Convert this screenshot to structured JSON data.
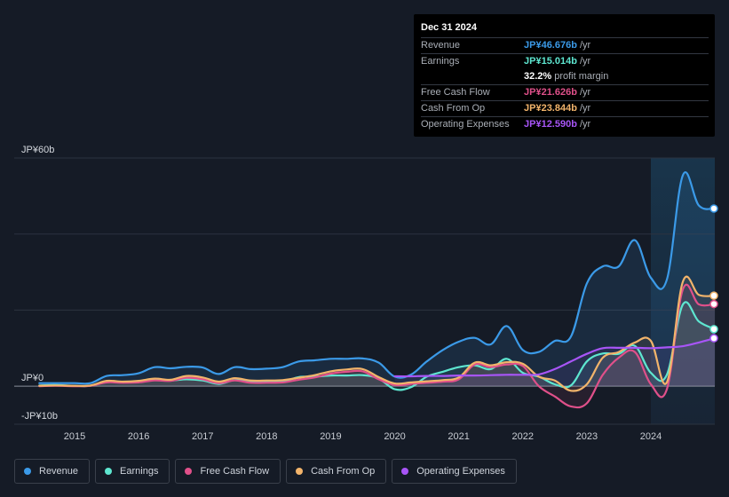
{
  "tooltip": {
    "date": "Dec 31 2024",
    "rows": [
      {
        "label": "Revenue",
        "value": "JP¥46.676b",
        "unit": "/yr",
        "color": "#3b9ae8"
      },
      {
        "label": "Earnings",
        "value": "JP¥15.014b",
        "unit": "/yr",
        "color": "#5ee6d0"
      },
      {
        "label": "",
        "value": "32.2%",
        "unit": "profit margin",
        "color": "#ffffff"
      },
      {
        "label": "Free Cash Flow",
        "value": "JP¥21.626b",
        "unit": "/yr",
        "color": "#e0508a"
      },
      {
        "label": "Cash From Op",
        "value": "JP¥23.844b",
        "unit": "/yr",
        "color": "#f2b46b"
      },
      {
        "label": "Operating Expenses",
        "value": "JP¥12.590b",
        "unit": "/yr",
        "color": "#a855f7"
      }
    ]
  },
  "legend": [
    {
      "label": "Revenue",
      "color": "#3b9ae8"
    },
    {
      "label": "Earnings",
      "color": "#5ee6d0"
    },
    {
      "label": "Free Cash Flow",
      "color": "#e0508a"
    },
    {
      "label": "Cash From Op",
      "color": "#f2b46b"
    },
    {
      "label": "Operating Expenses",
      "color": "#a855f7"
    }
  ],
  "chart_data": {
    "type": "line",
    "title": "",
    "unit": "JP¥ billions",
    "xlim": [
      2014.3,
      2025.0
    ],
    "ylim": [
      -10,
      60
    ],
    "y_tick_labels": [
      {
        "value": 60,
        "label": "JP¥60b"
      },
      {
        "value": 0,
        "label": "JP¥0"
      },
      {
        "value": -10,
        "label": "-JP¥10b"
      }
    ],
    "x_ticks": [
      "2015",
      "2016",
      "2017",
      "2018",
      "2019",
      "2020",
      "2021",
      "2022",
      "2023",
      "2024"
    ],
    "x_tick_values": [
      2015,
      2016,
      2017,
      2018,
      2019,
      2020,
      2021,
      2022,
      2023,
      2024
    ],
    "highlight_start": 2024.0,
    "series": [
      {
        "name": "Revenue",
        "color": "#3b9ae8",
        "points": [
          [
            2014.45,
            0.8
          ],
          [
            2014.7,
            0.8
          ],
          [
            2015.0,
            0.8
          ],
          [
            2015.25,
            0.8
          ],
          [
            2015.5,
            2.7
          ],
          [
            2015.75,
            2.9
          ],
          [
            2016.0,
            3.4
          ],
          [
            2016.25,
            5.0
          ],
          [
            2016.5,
            4.7
          ],
          [
            2016.75,
            5.1
          ],
          [
            2017.0,
            4.9
          ],
          [
            2017.25,
            3.2
          ],
          [
            2017.5,
            5.0
          ],
          [
            2017.75,
            4.5
          ],
          [
            2018.0,
            4.6
          ],
          [
            2018.25,
            5.0
          ],
          [
            2018.5,
            6.5
          ],
          [
            2018.75,
            6.8
          ],
          [
            2019.0,
            7.2
          ],
          [
            2019.25,
            7.2
          ],
          [
            2019.5,
            7.3
          ],
          [
            2019.75,
            6.2
          ],
          [
            2020.0,
            2.5
          ],
          [
            2020.25,
            3.0
          ],
          [
            2020.5,
            6.5
          ],
          [
            2020.75,
            9.5
          ],
          [
            2021.0,
            11.7
          ],
          [
            2021.25,
            12.7
          ],
          [
            2021.5,
            11.0
          ],
          [
            2021.75,
            15.8
          ],
          [
            2022.0,
            9.5
          ],
          [
            2022.25,
            9.0
          ],
          [
            2022.5,
            11.9
          ],
          [
            2022.75,
            13.0
          ],
          [
            2023.0,
            27.0
          ],
          [
            2023.25,
            31.5
          ],
          [
            2023.5,
            31.5
          ],
          [
            2023.75,
            38.4
          ],
          [
            2024.0,
            28.5
          ],
          [
            2024.25,
            28.0
          ],
          [
            2024.5,
            55.5
          ],
          [
            2024.75,
            47.5
          ],
          [
            2025.0,
            46.7
          ]
        ]
      },
      {
        "name": "Earnings",
        "color": "#5ee6d0",
        "points": [
          [
            2014.45,
            0.2
          ],
          [
            2014.7,
            0.3
          ],
          [
            2015.0,
            0.1
          ],
          [
            2015.25,
            0.1
          ],
          [
            2015.5,
            1.2
          ],
          [
            2015.75,
            1.0
          ],
          [
            2016.0,
            1.2
          ],
          [
            2016.25,
            1.8
          ],
          [
            2016.5,
            1.5
          ],
          [
            2016.75,
            1.8
          ],
          [
            2017.0,
            1.5
          ],
          [
            2017.25,
            0.6
          ],
          [
            2017.5,
            1.6
          ],
          [
            2017.75,
            1.2
          ],
          [
            2018.0,
            1.2
          ],
          [
            2018.25,
            1.2
          ],
          [
            2018.5,
            2.4
          ],
          [
            2018.75,
            2.5
          ],
          [
            2019.0,
            2.8
          ],
          [
            2019.25,
            2.8
          ],
          [
            2019.5,
            2.9
          ],
          [
            2019.75,
            2.0
          ],
          [
            2020.0,
            -0.8
          ],
          [
            2020.25,
            -0.3
          ],
          [
            2020.5,
            2.5
          ],
          [
            2020.75,
            3.8
          ],
          [
            2021.0,
            5.0
          ],
          [
            2021.25,
            5.5
          ],
          [
            2021.5,
            4.5
          ],
          [
            2021.75,
            7.2
          ],
          [
            2022.0,
            3.5
          ],
          [
            2022.25,
            2.5
          ],
          [
            2022.5,
            0.5
          ],
          [
            2022.75,
            0.2
          ],
          [
            2023.0,
            6.5
          ],
          [
            2023.25,
            8.6
          ],
          [
            2023.5,
            8.5
          ],
          [
            2023.75,
            10.6
          ],
          [
            2024.0,
            3.5
          ],
          [
            2024.25,
            3.0
          ],
          [
            2024.5,
            21.5
          ],
          [
            2024.75,
            17.0
          ],
          [
            2025.0,
            15.0
          ]
        ]
      },
      {
        "name": "Free Cash Flow",
        "color": "#e0508a",
        "points": [
          [
            2014.45,
            0.0
          ],
          [
            2014.7,
            0.1
          ],
          [
            2015.0,
            0.0
          ],
          [
            2015.25,
            0.1
          ],
          [
            2015.5,
            1.0
          ],
          [
            2015.75,
            0.9
          ],
          [
            2016.0,
            1.0
          ],
          [
            2016.25,
            1.5
          ],
          [
            2016.5,
            1.4
          ],
          [
            2016.75,
            2.2
          ],
          [
            2017.0,
            1.8
          ],
          [
            2017.25,
            0.8
          ],
          [
            2017.5,
            1.5
          ],
          [
            2017.75,
            0.9
          ],
          [
            2018.0,
            0.9
          ],
          [
            2018.25,
            1.0
          ],
          [
            2018.5,
            1.7
          ],
          [
            2018.75,
            2.3
          ],
          [
            2019.0,
            3.3
          ],
          [
            2019.25,
            3.8
          ],
          [
            2019.5,
            3.9
          ],
          [
            2019.75,
            1.8
          ],
          [
            2020.0,
            0.3
          ],
          [
            2020.25,
            0.6
          ],
          [
            2020.5,
            0.9
          ],
          [
            2020.75,
            1.2
          ],
          [
            2021.0,
            1.8
          ],
          [
            2021.25,
            5.7
          ],
          [
            2021.5,
            5.0
          ],
          [
            2021.75,
            5.7
          ],
          [
            2022.0,
            5.3
          ],
          [
            2022.25,
            0.0
          ],
          [
            2022.5,
            -2.7
          ],
          [
            2022.75,
            -5.3
          ],
          [
            2023.0,
            -4.5
          ],
          [
            2023.25,
            3.0
          ],
          [
            2023.5,
            7.5
          ],
          [
            2023.75,
            9.0
          ],
          [
            2024.0,
            0.5
          ],
          [
            2024.25,
            -0.8
          ],
          [
            2024.5,
            25.5
          ],
          [
            2024.75,
            21.5
          ],
          [
            2025.0,
            21.6
          ]
        ]
      },
      {
        "name": "Cash From Op",
        "color": "#f2b46b",
        "points": [
          [
            2014.45,
            0.1
          ],
          [
            2014.7,
            0.2
          ],
          [
            2015.0,
            0.1
          ],
          [
            2015.25,
            0.2
          ],
          [
            2015.5,
            1.4
          ],
          [
            2015.75,
            1.2
          ],
          [
            2016.0,
            1.4
          ],
          [
            2016.25,
            2.0
          ],
          [
            2016.5,
            1.7
          ],
          [
            2016.75,
            2.7
          ],
          [
            2017.0,
            2.3
          ],
          [
            2017.25,
            1.2
          ],
          [
            2017.5,
            2.1
          ],
          [
            2017.75,
            1.5
          ],
          [
            2018.0,
            1.5
          ],
          [
            2018.25,
            1.6
          ],
          [
            2018.5,
            2.2
          ],
          [
            2018.75,
            2.9
          ],
          [
            2019.0,
            3.9
          ],
          [
            2019.25,
            4.4
          ],
          [
            2019.5,
            4.5
          ],
          [
            2019.75,
            2.4
          ],
          [
            2020.0,
            0.7
          ],
          [
            2020.25,
            1.0
          ],
          [
            2020.5,
            1.3
          ],
          [
            2020.75,
            1.6
          ],
          [
            2021.0,
            2.3
          ],
          [
            2021.25,
            6.2
          ],
          [
            2021.5,
            5.5
          ],
          [
            2021.75,
            6.3
          ],
          [
            2022.0,
            5.9
          ],
          [
            2022.25,
            2.5
          ],
          [
            2022.5,
            1.5
          ],
          [
            2022.75,
            -1.2
          ],
          [
            2023.0,
            0.5
          ],
          [
            2023.25,
            7.5
          ],
          [
            2023.5,
            9.0
          ],
          [
            2023.75,
            11.5
          ],
          [
            2024.0,
            11.9
          ],
          [
            2024.25,
            1.0
          ],
          [
            2024.5,
            27.5
          ],
          [
            2024.75,
            24.0
          ],
          [
            2025.0,
            23.8
          ]
        ]
      },
      {
        "name": "Operating Expenses",
        "color": "#a855f7",
        "points": [
          [
            2020.0,
            2.6
          ],
          [
            2020.25,
            2.6
          ],
          [
            2020.5,
            2.7
          ],
          [
            2020.75,
            2.7
          ],
          [
            2021.0,
            2.8
          ],
          [
            2021.25,
            2.8
          ],
          [
            2021.5,
            2.9
          ],
          [
            2021.75,
            3.0
          ],
          [
            2022.0,
            3.0
          ],
          [
            2022.25,
            3.1
          ],
          [
            2022.5,
            4.5
          ],
          [
            2022.75,
            6.5
          ],
          [
            2023.0,
            8.5
          ],
          [
            2023.25,
            10.0
          ],
          [
            2023.5,
            10.1
          ],
          [
            2023.75,
            10.1
          ],
          [
            2024.0,
            10.0
          ],
          [
            2024.25,
            10.2
          ],
          [
            2024.5,
            10.5
          ],
          [
            2024.75,
            11.5
          ],
          [
            2025.0,
            12.6
          ]
        ]
      }
    ]
  }
}
